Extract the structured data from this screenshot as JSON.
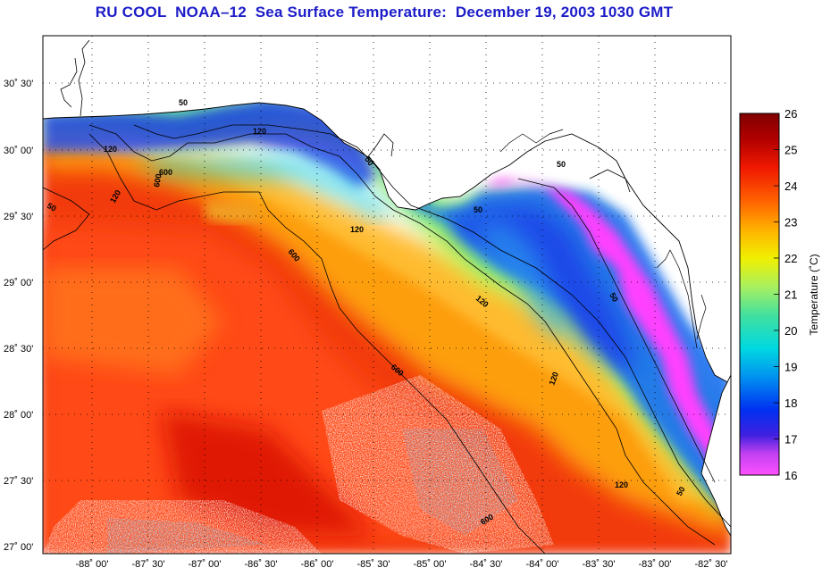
{
  "title": "RU COOL  NOAA–12  Sea Surface Temperature:  December 19, 2003 1030 GMT",
  "map": {
    "lat_labels": [
      "30˚ 30'",
      "30˚ 00'",
      "29˚ 30'",
      "29˚ 00'",
      "28˚ 30'",
      "28˚ 00'",
      "27˚ 30'",
      "27˚ 00'"
    ],
    "lon_labels": [
      "-88˚ 00'",
      "-87˚ 30'",
      "-87˚ 00'",
      "-86˚ 30'",
      "-86˚ 00'",
      "-85˚ 30'",
      "-85˚ 00'",
      "-84˚ 30'",
      "-84˚ 00'",
      "-83˚ 30'",
      "-83˚ 00'",
      "-82˚ 30'"
    ],
    "contour_labels": [
      "50",
      "120",
      "600",
      "50",
      "120",
      "600",
      "50",
      "120",
      "50",
      "600",
      "120",
      "50",
      "120",
      "600",
      "120",
      "50",
      "600",
      "120",
      "50"
    ]
  },
  "colorbar": {
    "title": "Temperature (˚C)",
    "min": 16,
    "max": 26,
    "tick_labels": [
      "26",
      "25",
      "24",
      "23",
      "22",
      "21",
      "20",
      "19",
      "18",
      "17",
      "16"
    ],
    "colors": [
      "#ff40ff",
      "#8030e0",
      "#0010e0",
      "#0070f0",
      "#00d0e0",
      "#40e0a0",
      "#a0f060",
      "#f0f000",
      "#ffa000",
      "#ff5000",
      "#e81000",
      "#b00000",
      "#800000"
    ]
  },
  "colors": {
    "title": "#1c1cc8",
    "land": "#ffffff",
    "coast": "#000000"
  }
}
